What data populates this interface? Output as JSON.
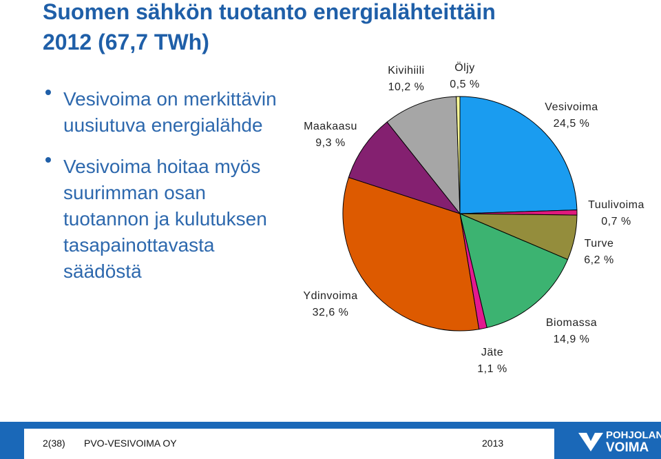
{
  "title": [
    "Suomen sähkön tuotanto energialähteittäin",
    "2012 (67,7 TWh)"
  ],
  "bullets": [
    [
      "Vesivoima on merkittävin",
      "uusiutuva energialähde"
    ],
    [
      "Vesivoima hoitaa myös",
      "suurimman osan",
      "tuotannon ja kulutuksen",
      "tasapainottavasta",
      "säädöstä"
    ]
  ],
  "chart_data": {
    "type": "pie",
    "categories": [
      "Vesivoima",
      "Tuulivoima",
      "Turve",
      "Biomassa",
      "Jäte",
      "Ydinvoima",
      "Maakaasu",
      "Kivihiili",
      "Öljy"
    ],
    "values": [
      24.5,
      0.7,
      6.2,
      14.9,
      1.1,
      32.6,
      9.3,
      10.2,
      0.5
    ],
    "value_labels": [
      "24,5 %",
      "0,7 %",
      "6,2 %",
      "14,9 %",
      "1,1 %",
      "32,6 %",
      "9,3 %",
      "10,2 %",
      "0,5 %"
    ],
    "colors": [
      "#1a9cf0",
      "#e0197d",
      "#948d3c",
      "#3cb371",
      "#e3198f",
      "#dd5a00",
      "#842070",
      "#a6a6a6",
      "#ffff99"
    ]
  },
  "footer": {
    "page": "2(38)",
    "company": "PVO-VESIVOIMA OY",
    "year": "2013",
    "logo": [
      "POHJOLAN",
      "VOIMA"
    ]
  }
}
